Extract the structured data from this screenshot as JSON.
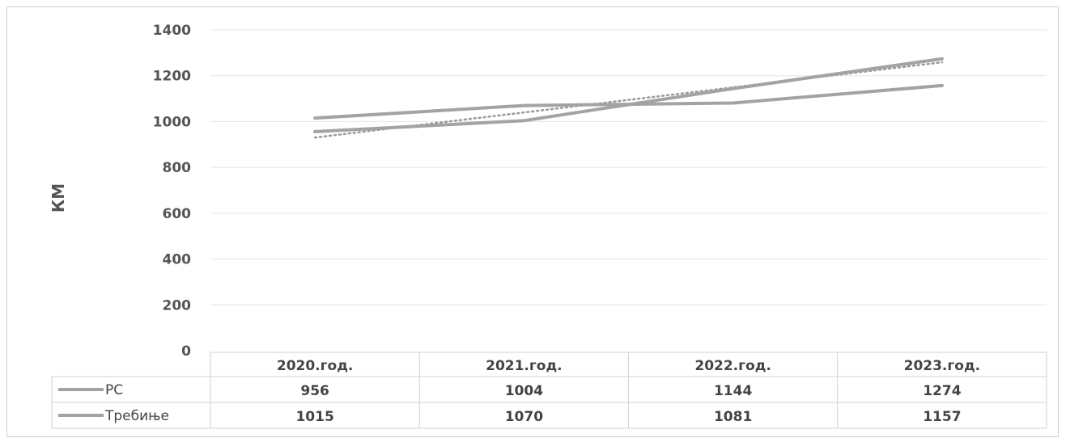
{
  "chart_data": {
    "type": "line",
    "ylabel": "КМ",
    "ylim": [
      0,
      1400
    ],
    "yticks": [
      0,
      200,
      400,
      600,
      800,
      1000,
      1200,
      1400
    ],
    "categories": [
      "2020.год.",
      "2021.год.",
      "2022.год.",
      "2023.год."
    ],
    "series": [
      {
        "name": "РС",
        "values": [
          956,
          1004,
          1144,
          1274
        ]
      },
      {
        "name": "Требиње",
        "values": [
          1015,
          1070,
          1081,
          1157
        ]
      }
    ],
    "trendline": {
      "series": "РС",
      "style": "dotted"
    },
    "grid": true,
    "legend": "data-table",
    "line_color": "#a3a3a3"
  }
}
